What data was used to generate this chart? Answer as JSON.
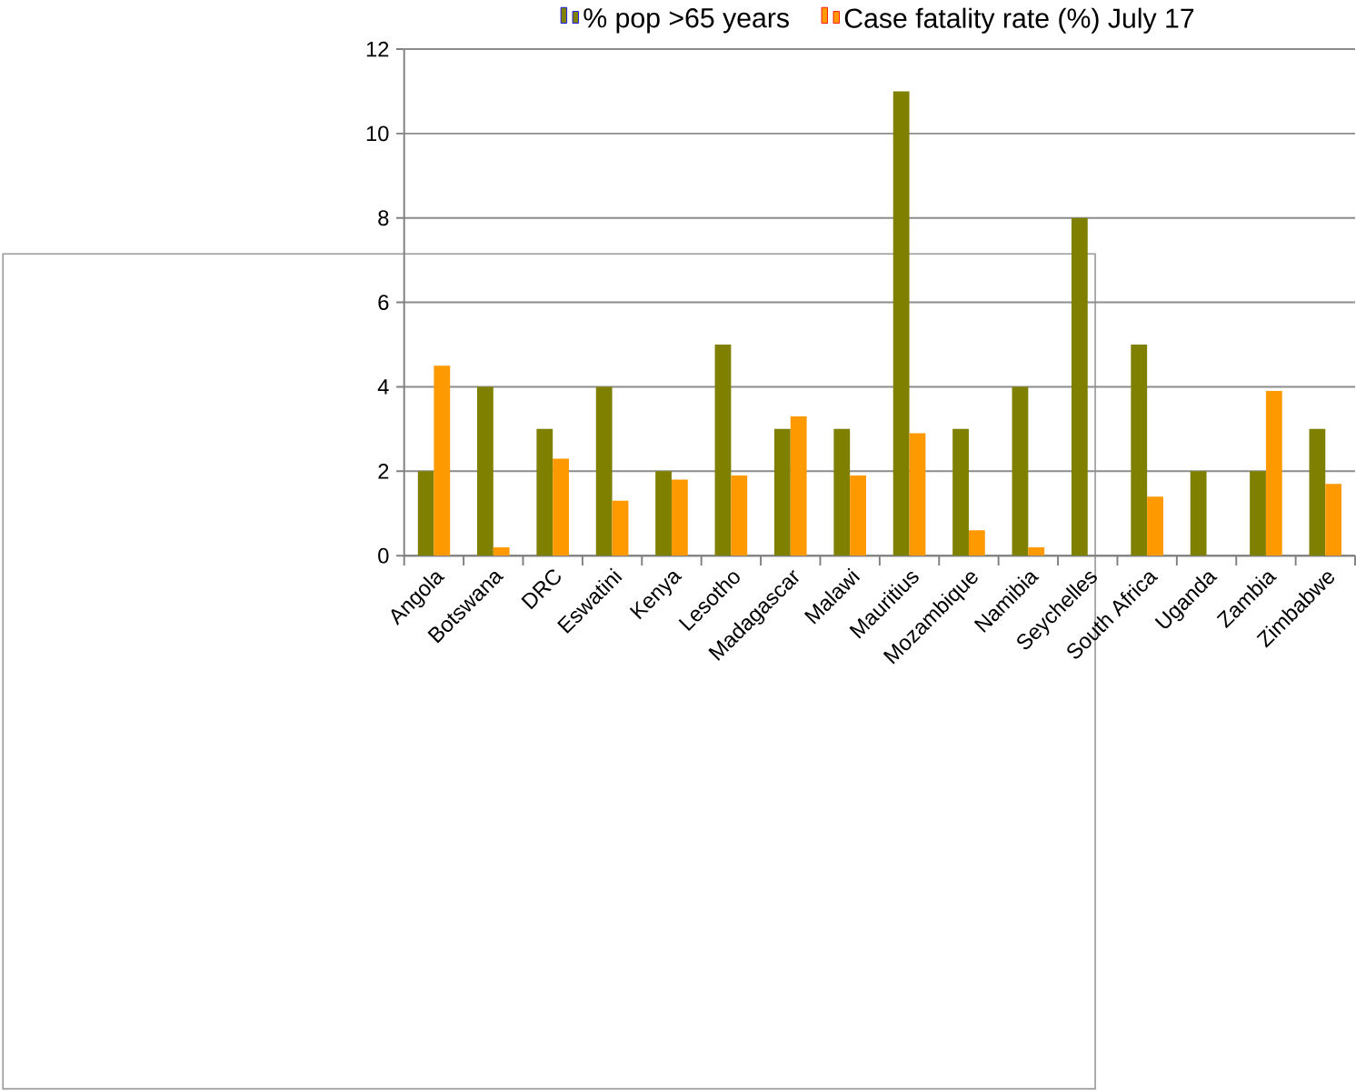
{
  "chart_data": {
    "type": "bar",
    "categories": [
      "Angola",
      "Botswana",
      "DRC",
      "Eswatini",
      "Kenya",
      "Lesotho",
      "Madagascar",
      "Malawi",
      "Mauritius",
      "Mozambique",
      "Namibia",
      "Seychelles",
      "South Africa",
      "Uganda",
      "Zambia",
      "Zimbabwe"
    ],
    "series": [
      {
        "name": "% pop >65 years",
        "color": "#808000",
        "values": [
          2,
          4,
          3,
          4,
          2,
          5,
          3,
          3,
          11,
          3,
          4,
          8,
          5,
          2,
          2,
          3
        ]
      },
      {
        "name": "Case fatality rate (%) July 17",
        "color": "#ff9900",
        "values": [
          4.5,
          0.2,
          2.3,
          1.3,
          1.8,
          1.9,
          3.3,
          1.9,
          2.9,
          0.6,
          0.2,
          null,
          1.4,
          null,
          3.9,
          1.7
        ]
      }
    ],
    "ylim": [
      0,
      12
    ],
    "yticks": [
      0,
      2,
      4,
      6,
      8,
      10,
      12
    ],
    "grid": "y",
    "legend": "top"
  }
}
